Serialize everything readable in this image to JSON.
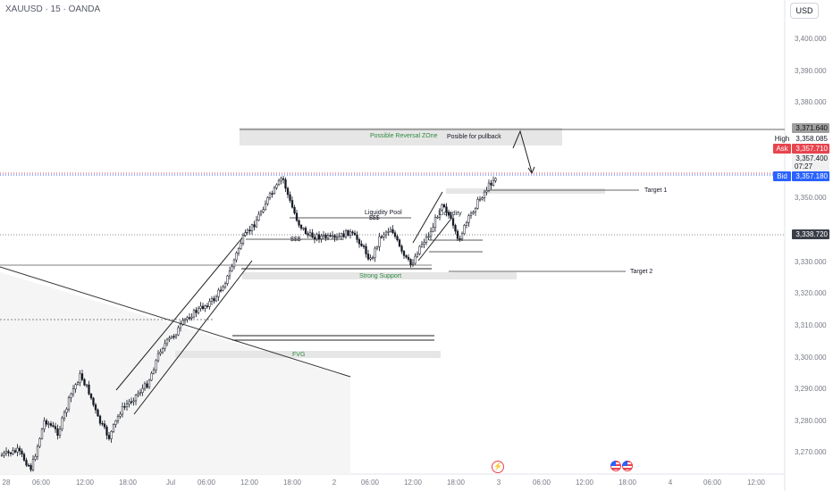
{
  "header": {
    "symbol_line": "XAUUSD · 15 · OANDA",
    "currency_button": "USD"
  },
  "price_axis": {
    "labels": [
      "3,400.000",
      "3,390.000",
      "3,380.000",
      "3,350.000",
      "3,330.000",
      "3,320.000",
      "3,310.000",
      "3,300.000",
      "3,290.000",
      "3,280.000",
      "3,270.000"
    ],
    "markers": {
      "high_value": "3,371.640",
      "high_tag": "High",
      "high_price": "3,358.085",
      "ask_tag": "Ask",
      "ask_price": "3,357.710",
      "last_price": "3,357.400",
      "countdown": "07:27",
      "bid_tag": "Bid",
      "bid_price": "3,357.180",
      "line_price": "3,338.720"
    }
  },
  "time_axis": {
    "labels": [
      "28",
      "06:00",
      "12:00",
      "18:00",
      "Jul",
      "06:00",
      "12:00",
      "18:00",
      "2",
      "06:00",
      "12:00",
      "18:00",
      "3",
      "06:00",
      "12:00",
      "18:00",
      "4",
      "06:00",
      "12:00"
    ]
  },
  "annotations": {
    "reversal_zone": "Possible Reversal ZOne",
    "pullback": "Posible for pullback",
    "liquidity_pool": "Liquidity Pool",
    "liquidity": "Liquidity",
    "dollars_1": "$$$",
    "dollars_2": "$$$",
    "target_1": "Target 1",
    "target_2": "Target 2",
    "strong_support": "Strong Support",
    "fvg": "FVG"
  },
  "colors": {
    "zone_text": "#2e8b3e",
    "ask": "#e8444e",
    "bid": "#2962ff",
    "up_candle": "#ffffff",
    "down_candle": "#131722"
  },
  "icons": {
    "event_flash": "lightning-icon",
    "event_us_1": "us-flag-icon",
    "event_us_2": "us-flag-icon"
  }
}
